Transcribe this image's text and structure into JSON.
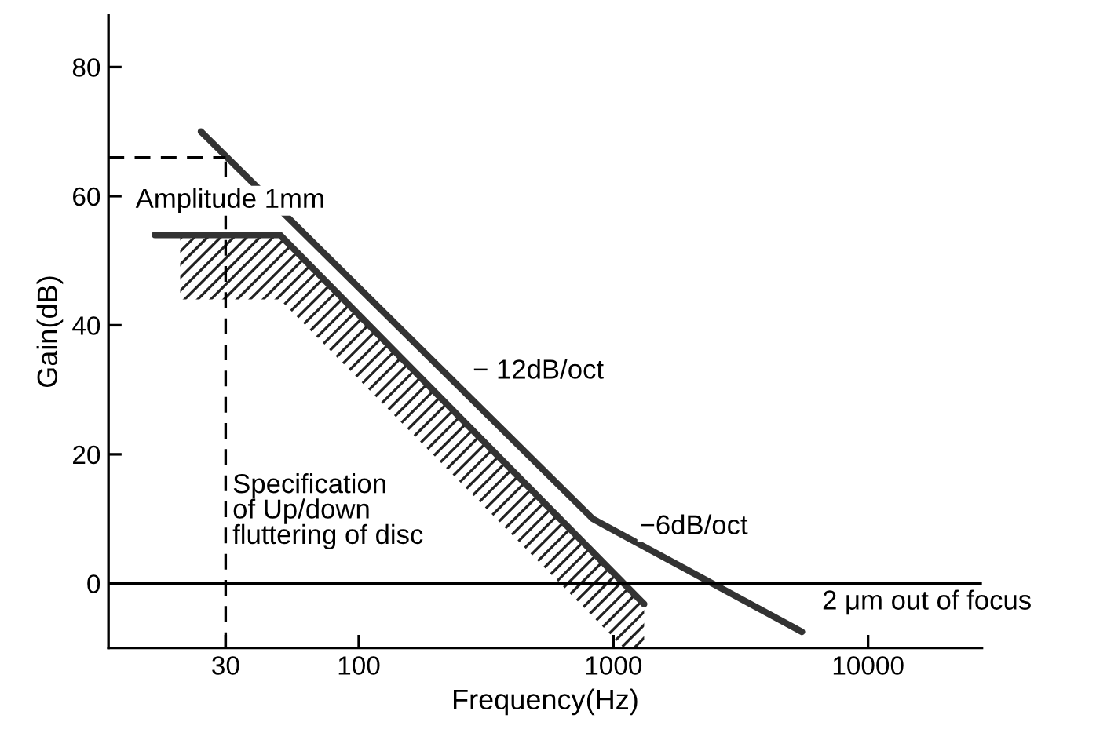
{
  "chart_data": {
    "type": "line",
    "xlabel": "Frequency(Hz)",
    "ylabel": "Gain(dB)",
    "log": "x",
    "xlim": [
      10.4,
      28000
    ],
    "xticks": [
      30,
      100,
      1000,
      10000
    ],
    "ylim": [
      -10,
      88
    ],
    "yticks": [
      0,
      20,
      40,
      60,
      80
    ],
    "grid": false,
    "marker": "none",
    "line_style": "solid",
    "series": [
      {
        "color": "#333333",
        "x": [
          24,
          830,
          5500
        ],
        "values": [
          70,
          10,
          -7.5
        ]
      },
      {
        "color": "#333333",
        "x": [
          15.8,
          49,
          1320
        ],
        "values": [
          54,
          54,
          -3.2
        ]
      }
    ],
    "ref_lines": [
      {
        "axis": "y",
        "value": 0,
        "color": "#000000",
        "line_style": "solid"
      },
      {
        "axis": "x",
        "value": 30,
        "color": "#000000",
        "line_style": "dashed"
      },
      {
        "axis": "y",
        "value": 66,
        "color": "#000000",
        "line_style": "dashed"
      }
    ],
    "annotations": [
      "Amplitude 1mm",
      "− 12dB/oct",
      "−6dB/oct",
      "2 μm out of focus",
      "Specification\nof Up/down\nfluttering of disc"
    ]
  }
}
